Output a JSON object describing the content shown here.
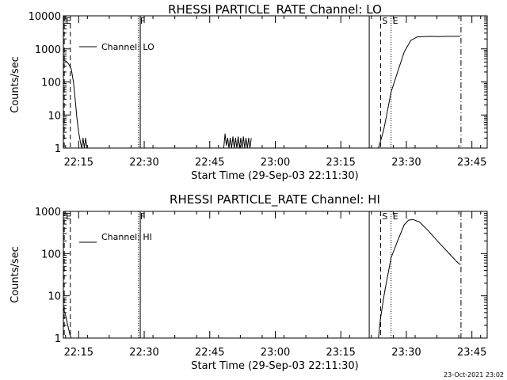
{
  "footer": {
    "timestamp": "23-Oct-2021 23:02"
  },
  "chart_data": [
    {
      "type": "line",
      "title": "RHESSI PARTICLE_RATE Channel: LO",
      "xlabel": "Start Time (29-Sep-03 22:11:30)",
      "ylabel": "Counts/sec",
      "y_scale": "log",
      "xlim_min": [
        0,
        97
      ],
      "ylim": [
        1,
        10000
      ],
      "y_ticks": [
        {
          "value": 1,
          "label": "1"
        },
        {
          "value": 10,
          "label": "10"
        },
        {
          "value": 100,
          "label": "100"
        },
        {
          "value": 1000,
          "label": "1000"
        },
        {
          "value": 10000,
          "label": "10000"
        }
      ],
      "x_ticks": [
        {
          "value": 3.5,
          "label": "22:15"
        },
        {
          "value": 18.5,
          "label": "22:30"
        },
        {
          "value": 33.5,
          "label": "22:45"
        },
        {
          "value": 48.5,
          "label": "23:00"
        },
        {
          "value": 63.5,
          "label": "23:15"
        },
        {
          "value": 78.5,
          "label": "23:30"
        },
        {
          "value": 93.5,
          "label": "23:45"
        }
      ],
      "legend": {
        "entry": "Channel: LO",
        "position": "top-left"
      },
      "markers": [
        {
          "x": 0.2,
          "style": "dash",
          "label": "E"
        },
        {
          "x": 1.6,
          "style": "dash",
          "label": ""
        },
        {
          "x": 17.2,
          "style": "dot",
          "label": "F"
        },
        {
          "x": 17.6,
          "style": "solid",
          "label": ""
        },
        {
          "x": 70.0,
          "style": "solid",
          "label": ""
        },
        {
          "x": 72.6,
          "style": "dash",
          "label": "S"
        },
        {
          "x": 75.0,
          "style": "dot",
          "label": "E"
        },
        {
          "x": 91.0,
          "style": "dashdot",
          "label": ""
        }
      ],
      "series": [
        {
          "segments": [
            [
              [
                0,
                450
              ],
              [
                0.6,
                430
              ],
              [
                1.2,
                350
              ],
              [
                1.8,
                250
              ],
              [
                2.3,
                100
              ],
              [
                2.7,
                30
              ],
              [
                3.1,
                8
              ],
              [
                3.5,
                3
              ],
              [
                3.9,
                1.5
              ],
              [
                4.2,
                1
              ],
              [
                4.5,
                2
              ],
              [
                4.8,
                1
              ],
              [
                5.1,
                2
              ],
              [
                5.4,
                1
              ]
            ],
            [
              [
                36.7,
                1
              ],
              [
                37.0,
                2.7
              ],
              [
                37.3,
                1.2
              ],
              [
                37.6,
                2
              ],
              [
                37.9,
                1
              ],
              [
                38.2,
                2
              ],
              [
                38.5,
                1
              ],
              [
                38.8,
                2.2
              ],
              [
                39.1,
                1
              ],
              [
                39.4,
                2
              ],
              [
                39.7,
                1
              ],
              [
                40.0,
                2.2
              ],
              [
                40.3,
                1
              ],
              [
                40.6,
                2
              ],
              [
                40.9,
                1
              ],
              [
                41.2,
                2.2
              ],
              [
                41.5,
                1
              ],
              [
                41.8,
                2
              ],
              [
                42.1,
                1
              ],
              [
                42.4,
                2
              ],
              [
                42.7,
                1
              ],
              [
                43.0,
                2
              ]
            ],
            [
              [
                72.1,
                1
              ],
              [
                72.8,
                2
              ],
              [
                73.3,
                3.5
              ],
              [
                74.0,
                10
              ],
              [
                75.0,
                50
              ],
              [
                76.5,
                200
              ],
              [
                78.0,
                800
              ],
              [
                79.5,
                1800
              ],
              [
                81.0,
                2300
              ],
              [
                84.0,
                2400
              ],
              [
                86.0,
                2350
              ],
              [
                88.0,
                2400
              ],
              [
                90.8,
                2400
              ]
            ]
          ]
        }
      ]
    },
    {
      "type": "line",
      "title": "RHESSI PARTICLE_RATE Channel: HI",
      "xlabel": "Start Time (29-Sep-03 22:11:30)",
      "ylabel": "Counts/sec",
      "y_scale": "log",
      "xlim_min": [
        0,
        97
      ],
      "ylim": [
        1,
        1000
      ],
      "y_ticks": [
        {
          "value": 1,
          "label": "1"
        },
        {
          "value": 10,
          "label": "10"
        },
        {
          "value": 100,
          "label": "100"
        },
        {
          "value": 1000,
          "label": "1000"
        }
      ],
      "x_ticks": [
        {
          "value": 3.5,
          "label": "22:15"
        },
        {
          "value": 18.5,
          "label": "22:30"
        },
        {
          "value": 33.5,
          "label": "22:45"
        },
        {
          "value": 48.5,
          "label": "23:00"
        },
        {
          "value": 63.5,
          "label": "23:15"
        },
        {
          "value": 78.5,
          "label": "23:30"
        },
        {
          "value": 93.5,
          "label": "23:45"
        }
      ],
      "legend": {
        "entry": "Channel: HI",
        "position": "top-left"
      },
      "markers": [
        {
          "x": 0.2,
          "style": "dash",
          "label": "E"
        },
        {
          "x": 1.6,
          "style": "dash",
          "label": ""
        },
        {
          "x": 17.2,
          "style": "dot",
          "label": "F"
        },
        {
          "x": 17.6,
          "style": "solid",
          "label": ""
        },
        {
          "x": 70.0,
          "style": "solid",
          "label": ""
        },
        {
          "x": 72.6,
          "style": "dash",
          "label": "S"
        },
        {
          "x": 75.0,
          "style": "dot",
          "label": "E"
        },
        {
          "x": 91.0,
          "style": "dashdot",
          "label": ""
        }
      ],
      "series": [
        {
          "segments": [
            [
              [
                0,
                5
              ],
              [
                0.5,
                3.5
              ],
              [
                1.0,
                2
              ],
              [
                1.5,
                1.2
              ],
              [
                1.8,
                1
              ]
            ],
            [
              [
                72.1,
                1
              ],
              [
                72.6,
                3
              ],
              [
                73.5,
                12
              ],
              [
                75.0,
                80
              ],
              [
                76.5,
                200
              ],
              [
                78.0,
                480
              ],
              [
                79.0,
                620
              ],
              [
                80.0,
                640
              ],
              [
                81.5,
                560
              ],
              [
                83.5,
                350
              ],
              [
                86.0,
                180
              ],
              [
                88.5,
                95
              ],
              [
                90.0,
                65
              ],
              [
                90.8,
                55
              ]
            ]
          ]
        }
      ]
    }
  ]
}
